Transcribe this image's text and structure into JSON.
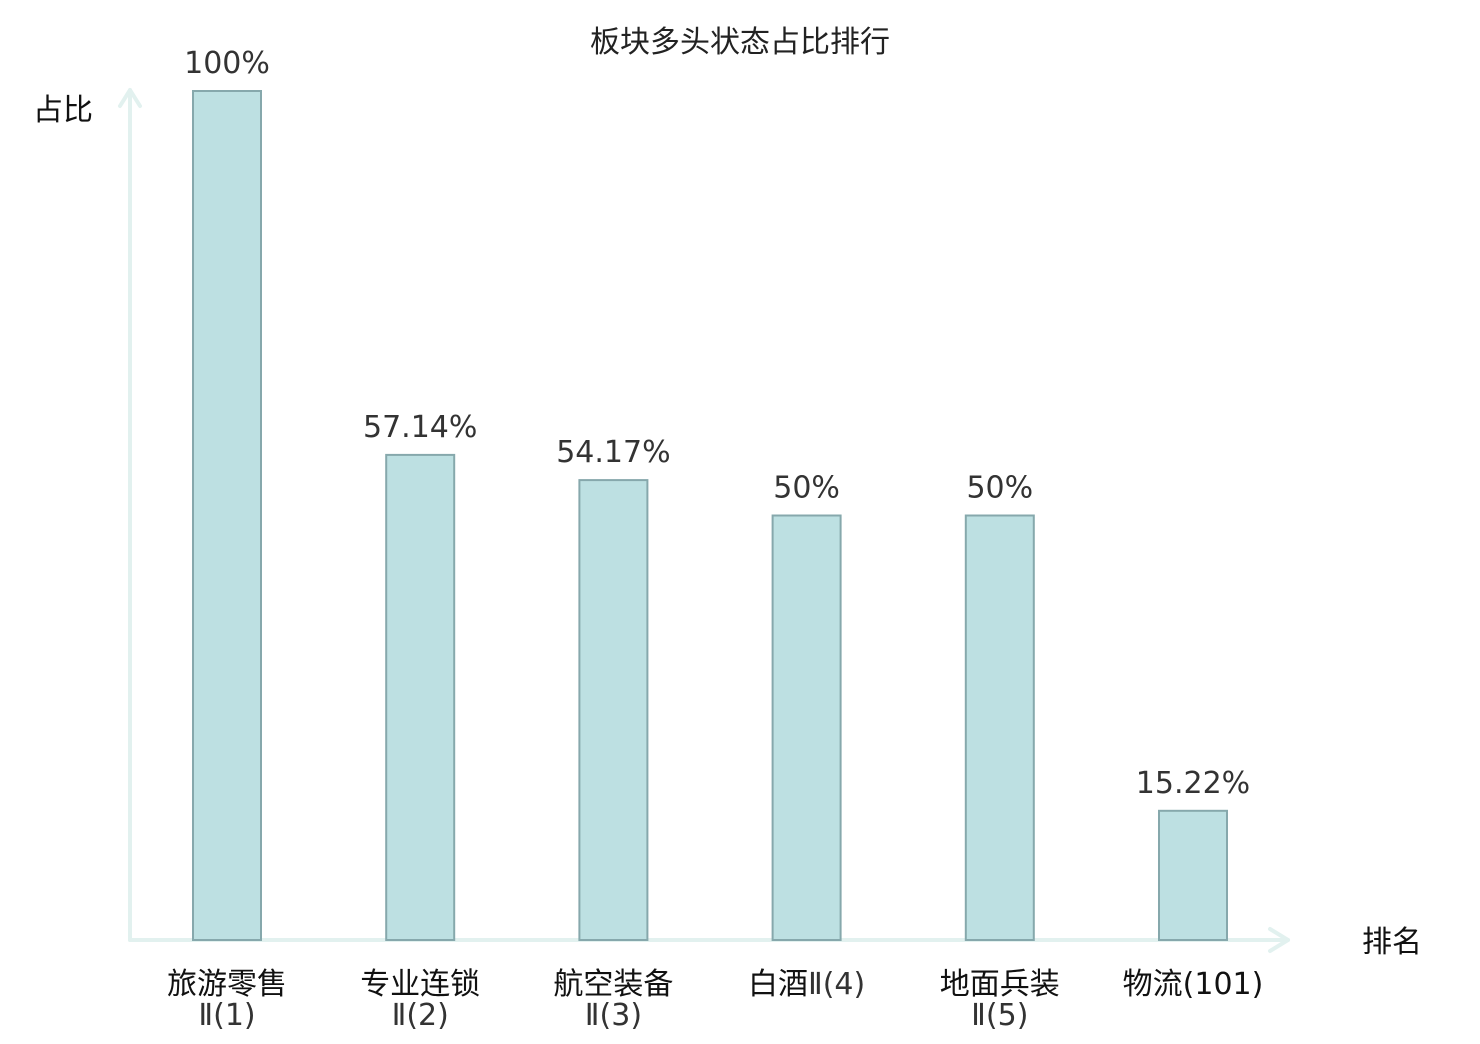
{
  "chart_data": {
    "type": "bar",
    "title": "板块多头状态占比排行",
    "ylabel": "占比",
    "xlabel": "排名",
    "ylim": [
      0,
      100
    ],
    "grid": false,
    "categories": [
      {
        "name": "旅游零售",
        "sub": "Ⅱ(1)",
        "rank_inline": "",
        "highlight": false
      },
      {
        "name": "专业连锁",
        "sub": "Ⅱ(2)",
        "rank_inline": "",
        "highlight": false
      },
      {
        "name": "航空装备",
        "sub": "Ⅱ(3)",
        "rank_inline": "",
        "highlight": false
      },
      {
        "name": "白酒",
        "sub": "",
        "rank_inline": "Ⅱ(4)",
        "highlight": false
      },
      {
        "name": "地面兵装",
        "sub": "Ⅱ(5)",
        "rank_inline": "",
        "highlight": false
      },
      {
        "name": "物流",
        "sub": "",
        "rank_inline": "(101)",
        "highlight": true
      }
    ],
    "values": [
      100,
      57.14,
      54.17,
      50,
      50,
      15.22
    ],
    "value_labels": [
      "100%",
      "57.14%",
      "54.17%",
      "50%",
      "50%",
      "15.22%"
    ],
    "colors": {
      "bar_fill": "#bde0e2",
      "bar_stroke": "#86a8ac",
      "axis": "#e2f1ef",
      "highlight": "#e0141e"
    }
  }
}
